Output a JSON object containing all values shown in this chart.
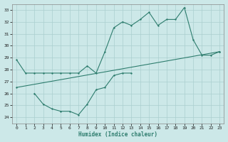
{
  "line1_x": [
    0,
    1,
    2,
    3,
    4,
    5,
    6,
    7,
    8,
    9,
    10,
    11,
    12,
    13,
    14,
    15,
    16,
    17,
    18,
    19,
    20,
    21,
    22,
    23
  ],
  "line1_y": [
    28.8,
    27.7,
    27.7,
    27.7,
    27.7,
    27.7,
    27.7,
    27.7,
    28.3,
    27.7,
    29.5,
    31.5,
    32.0,
    31.7,
    32.2,
    32.8,
    31.7,
    32.2,
    32.2,
    33.2,
    30.5,
    29.2,
    29.2,
    29.5
  ],
  "line2_x": [
    2,
    3,
    4,
    5,
    6,
    7,
    8,
    9,
    10,
    11,
    12,
    13
  ],
  "line2_y": [
    26.0,
    25.1,
    24.7,
    24.5,
    24.5,
    24.2,
    25.1,
    26.3,
    26.5,
    27.5,
    27.7,
    27.7
  ],
  "line3_x": [
    0,
    23
  ],
  "line3_y": [
    26.5,
    29.5
  ],
  "color": "#2e7d6e",
  "bg_color": "#cce8e8",
  "grid_color": "#aacfcf",
  "xlabel": "Humidex (Indice chaleur)",
  "ylim": [
    23.5,
    33.5
  ],
  "xlim": [
    -0.5,
    23.5
  ],
  "yticks": [
    24,
    25,
    26,
    27,
    28,
    29,
    30,
    31,
    32,
    33
  ],
  "xticks": [
    0,
    1,
    2,
    3,
    4,
    5,
    6,
    7,
    8,
    9,
    10,
    11,
    12,
    13,
    14,
    15,
    16,
    17,
    18,
    19,
    20,
    21,
    22,
    23
  ]
}
